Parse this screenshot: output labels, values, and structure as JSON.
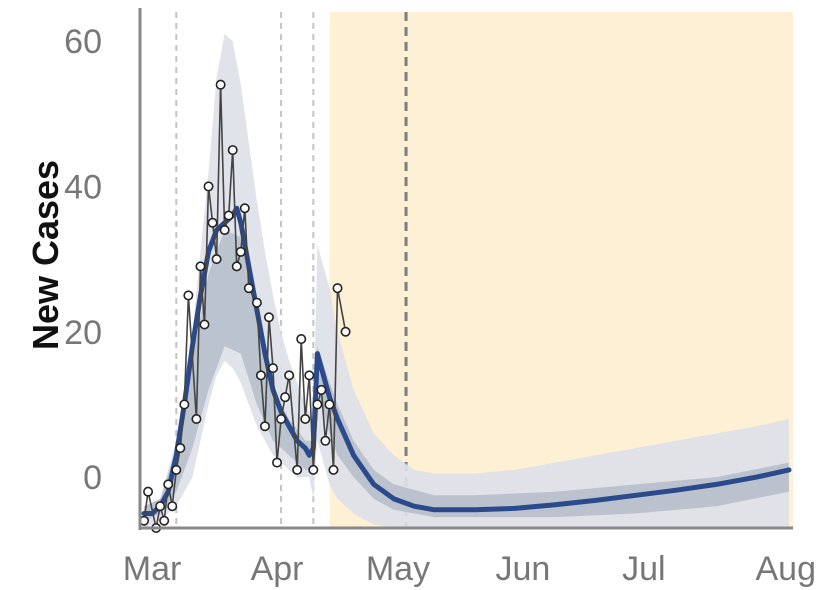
{
  "chart_data": {
    "type": "line",
    "title": "",
    "xlabel": "",
    "ylabel": "New Cases",
    "x_tick_labels": [
      "Mar",
      "Apr",
      "May",
      "Jun",
      "Jul",
      "Aug"
    ],
    "y_tick_labels": [
      "0",
      "20",
      "40",
      "60"
    ],
    "x_unit": "days since Mar 1",
    "xlim": [
      -3,
      159
    ],
    "ylim": [
      -7,
      64
    ],
    "grid": false,
    "vertical_dashed_lines": [
      6,
      32,
      40
    ],
    "projection_start_line": 63,
    "forecast_region_start": 44,
    "colors": {
      "forecast_region": "#fdf0d5",
      "band_outer": "#dde1e8",
      "band_inner": "#b7bfcb",
      "fit_line": "#2b4a8c",
      "observed_line": "#444444",
      "observed_marker_fill": "#ffffff",
      "axis": "#888888"
    },
    "series": [
      {
        "name": "Observed",
        "x": [
          -2,
          -1,
          1,
          2,
          3,
          4,
          5,
          6,
          7,
          8,
          9,
          11,
          12,
          13,
          14,
          15,
          16,
          17,
          18,
          19,
          20,
          21,
          22,
          23,
          24,
          26,
          27,
          28,
          29,
          30,
          31,
          32,
          33,
          34,
          36,
          37,
          38,
          39,
          40,
          41,
          42,
          43,
          44,
          45,
          46,
          48
        ],
        "y": [
          -6,
          -2,
          -7,
          -4,
          -6,
          -1,
          -4,
          1,
          4,
          10,
          25,
          8,
          29,
          21,
          40,
          35,
          30,
          54,
          34,
          36,
          45,
          29,
          31,
          37,
          26,
          24,
          14,
          7,
          22,
          15,
          2,
          8,
          11,
          14,
          1,
          19,
          8,
          14,
          1,
          10,
          12,
          5,
          10,
          1,
          26,
          20
        ]
      },
      {
        "name": "Fit",
        "x": [
          -2,
          0,
          2,
          4,
          6,
          8,
          10,
          12,
          14,
          16,
          18,
          20,
          21,
          22,
          24,
          26,
          28,
          30,
          32,
          34,
          36,
          38,
          39,
          40,
          41,
          42,
          44,
          46,
          50,
          55,
          60,
          65,
          70,
          75,
          80,
          90,
          100,
          110,
          120,
          130,
          140,
          150,
          158
        ],
        "y": [
          -5,
          -5,
          -4,
          -2,
          3,
          10,
          18,
          25,
          31,
          34,
          35,
          36,
          37,
          35,
          29,
          23,
          17,
          12,
          9,
          7,
          5,
          4,
          3,
          4,
          17,
          15,
          11,
          8,
          3,
          -1,
          -3,
          -4,
          -4.5,
          -4.5,
          -4.5,
          -4.3,
          -3.8,
          -3.2,
          -2.5,
          -1.8,
          -1,
          0,
          1
        ]
      }
    ],
    "band_outer": {
      "x": [
        -2,
        2,
        6,
        10,
        14,
        16,
        18,
        20,
        22,
        24,
        26,
        28,
        30,
        32,
        34,
        36,
        38,
        39,
        40,
        41,
        42,
        44,
        46,
        50,
        55,
        60,
        65,
        70,
        80,
        90,
        100,
        110,
        120,
        130,
        140,
        150,
        158
      ],
      "upper": [
        -4,
        -3,
        5,
        20,
        42,
        55,
        61,
        60,
        54,
        46,
        38,
        31,
        25,
        20,
        16,
        13,
        10,
        9,
        8,
        32,
        30,
        26,
        20,
        12,
        6,
        3,
        1,
        0.5,
        0.5,
        1,
        2,
        3,
        4,
        5,
        6,
        7,
        8
      ],
      "lower": [
        -7,
        -6,
        -4,
        0,
        10,
        14,
        16,
        15,
        13,
        10,
        7,
        5,
        3,
        2,
        1,
        0,
        0,
        0,
        -3,
        5,
        3,
        -1,
        -3,
        -5,
        -6.5,
        -7,
        -7,
        -7,
        -7,
        -7,
        -7,
        -7,
        -7,
        -7,
        -7,
        -7,
        -7
      ]
    },
    "band_inner": {
      "x": [
        -2,
        2,
        6,
        10,
        14,
        18,
        22,
        26,
        30,
        34,
        38,
        40,
        41,
        44,
        46,
        50,
        55,
        60,
        70,
        80,
        100,
        120,
        140,
        158
      ],
      "upper": [
        -4,
        -3,
        4,
        16,
        28,
        34,
        33,
        22,
        12,
        8,
        5,
        5,
        18,
        13,
        10,
        5,
        1,
        -1,
        -2.5,
        -2.5,
        -2,
        -1,
        0,
        2
      ],
      "lower": [
        -6,
        -5,
        -2,
        4,
        12,
        18,
        17,
        10,
        5,
        3,
        1,
        1,
        12,
        6,
        3,
        0,
        -3,
        -4.5,
        -5.5,
        -5.5,
        -5.5,
        -5,
        -4,
        -2
      ]
    }
  }
}
